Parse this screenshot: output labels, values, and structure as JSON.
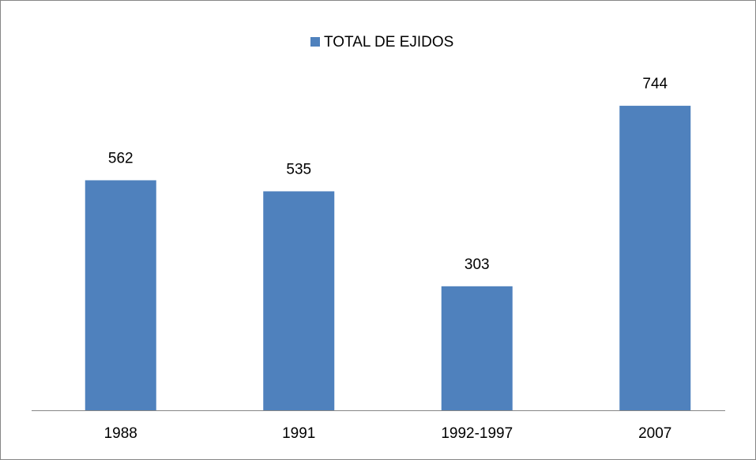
{
  "chart_data": {
    "type": "bar",
    "categories": [
      "1988",
      "1991",
      "1992-1997",
      "2007"
    ],
    "series": [
      {
        "name": "TOTAL DE EJIDOS",
        "color": "#4f81bd",
        "values": [
          562,
          535,
          303,
          744
        ]
      }
    ],
    "ylim": [
      0,
      800
    ],
    "legend": "top"
  }
}
